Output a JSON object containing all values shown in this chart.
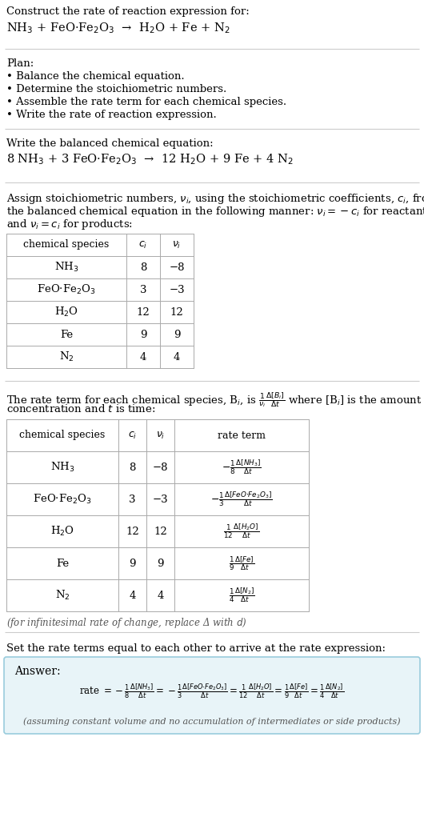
{
  "bg_color": "#ffffff",
  "text_color": "#000000",
  "gray_text": "#888888",
  "line_color": "#cccccc",
  "answer_box_color": "#e8f4f8",
  "answer_box_border": "#99ccdd",
  "sections": {
    "s1_line1": "Construct the rate of reaction expression for:",
    "s1_line2": "NH$_3$ + FeO·Fe$_2$O$_3$  →  H$_2$O + Fe + N$_2$",
    "s2_header": "Plan:",
    "s2_items": [
      "• Balance the chemical equation.",
      "• Determine the stoichiometric numbers.",
      "• Assemble the rate term for each chemical species.",
      "• Write the rate of reaction expression."
    ],
    "s3_header": "Write the balanced chemical equation:",
    "s3_eq": "8 NH$_3$ + 3 FeO·Fe$_2$O$_3$  →  12 H$_2$O + 9 Fe + 4 N$_2$",
    "s4_header_part1": "Assign stoichiometric numbers, ",
    "s4_header_part2": ", using the stoichiometric coefficients, ",
    "s4_header_part3": ", from the balanced chemical equation in the following manner: ",
    "s4_header_part4": " for reactants and ",
    "s4_header_part5": " for products:",
    "s4_text": "Assign stoichiometric numbers, $\\nu_i$, using the stoichiometric coefficients, $c_i$, from\nthe balanced chemical equation in the following manner: $\\nu_i = -c_i$ for reactants\nand $\\nu_i = c_i$ for products:",
    "table1_cols": [
      "chemical species",
      "$c_i$",
      "$\\nu_i$"
    ],
    "table1_rows": [
      [
        "NH$_3$",
        "8",
        "−8"
      ],
      [
        "FeO·Fe$_2$O$_3$",
        "3",
        "−3"
      ],
      [
        "H$_2$O",
        "12",
        "12"
      ],
      [
        "Fe",
        "9",
        "9"
      ],
      [
        "N$_2$",
        "4",
        "4"
      ]
    ],
    "s5_text": "The rate term for each chemical species, B$_i$, is $\\frac{1}{\\nu_i}\\frac{\\Delta[B_i]}{\\Delta t}$ where [B$_i$] is the amount\nconcentration and $t$ is time:",
    "table2_cols": [
      "chemical species",
      "$c_i$",
      "$\\nu_i$",
      "rate term"
    ],
    "table2_rows": [
      [
        "NH$_3$",
        "8",
        "−8",
        "$-\\frac{1}{8}\\frac{\\Delta[NH_3]}{\\Delta t}$"
      ],
      [
        "FeO·Fe$_2$O$_3$",
        "3",
        "−3",
        "$-\\frac{1}{3}\\frac{\\Delta[FeO{\\cdot}Fe_2O_3]}{\\Delta t}$"
      ],
      [
        "H$_2$O",
        "12",
        "12",
        "$\\frac{1}{12}\\frac{\\Delta[H_2O]}{\\Delta t}$"
      ],
      [
        "Fe",
        "9",
        "9",
        "$\\frac{1}{9}\\frac{\\Delta[Fe]}{\\Delta t}$"
      ],
      [
        "N$_2$",
        "4",
        "4",
        "$\\frac{1}{4}\\frac{\\Delta[N_2]}{\\Delta t}$"
      ]
    ],
    "s5_footnote": "(for infinitesimal rate of change, replace Δ with $d$)",
    "s6_header": "Set the rate terms equal to each other to arrive at the rate expression:",
    "answer_label": "Answer:",
    "answer_eq": "rate $= -\\frac{1}{8}\\frac{\\Delta[NH_3]}{\\Delta t} = -\\frac{1}{3}\\frac{\\Delta[FeO{\\cdot}Fe_2O_3]}{\\Delta t} = \\frac{1}{12}\\frac{\\Delta[H_2O]}{\\Delta t} = \\frac{1}{9}\\frac{\\Delta[Fe]}{\\Delta t} = \\frac{1}{4}\\frac{\\Delta[N_2]}{\\Delta t}$",
    "answer_footnote": "(assuming constant volume and no accumulation of intermediates or side products)"
  }
}
